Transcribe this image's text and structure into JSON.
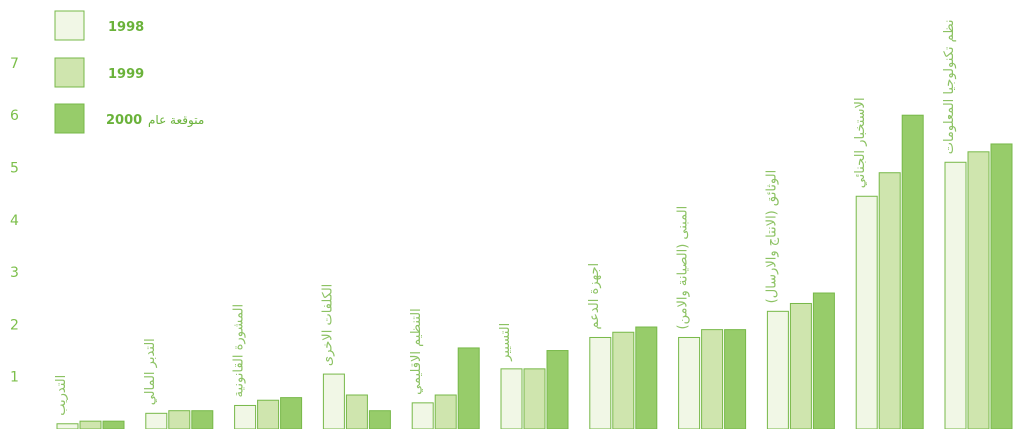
{
  "chart_data": {
    "type": "bar",
    "categories": [
      "التدريب",
      "التدبر المالي",
      "المشورة القانونية",
      "الكلفات الاخرى",
      "التنظيم الاقليمي",
      "التسيير",
      "اجهزة الدعم",
      "المبنى (الصيانة والامن)",
      "الوثائق (الانتاج والارسال)",
      "الاستخبار الجنائي",
      "نظم تكنولوجيا المعلومات"
    ],
    "series": [
      {
        "name": "1998",
        "values": [
          0.1,
          0.3,
          0.45,
          1.05,
          0.5,
          1.15,
          1.75,
          1.75,
          2.25,
          4.45,
          5.1
        ]
      },
      {
        "name": "1999",
        "values": [
          0.15,
          0.35,
          0.55,
          0.65,
          0.65,
          1.15,
          1.85,
          1.9,
          2.4,
          4.9,
          5.3
        ]
      },
      {
        "name": "2000",
        "note": "متوقعة عام",
        "values": [
          0.15,
          0.35,
          0.6,
          0.35,
          1.55,
          1.5,
          1.95,
          1.9,
          2.6,
          6.0,
          5.45
        ]
      }
    ],
    "yticks": [
      1,
      2,
      3,
      4,
      5,
      6,
      7
    ],
    "ylim": [
      0,
      7.9
    ],
    "legend_position": "top-left",
    "colors": [
      "#f1f7e6",
      "#cfe5ae",
      "#97cc6a"
    ],
    "stroke_color": "#77b848",
    "text_color": "#7cbf4a"
  }
}
